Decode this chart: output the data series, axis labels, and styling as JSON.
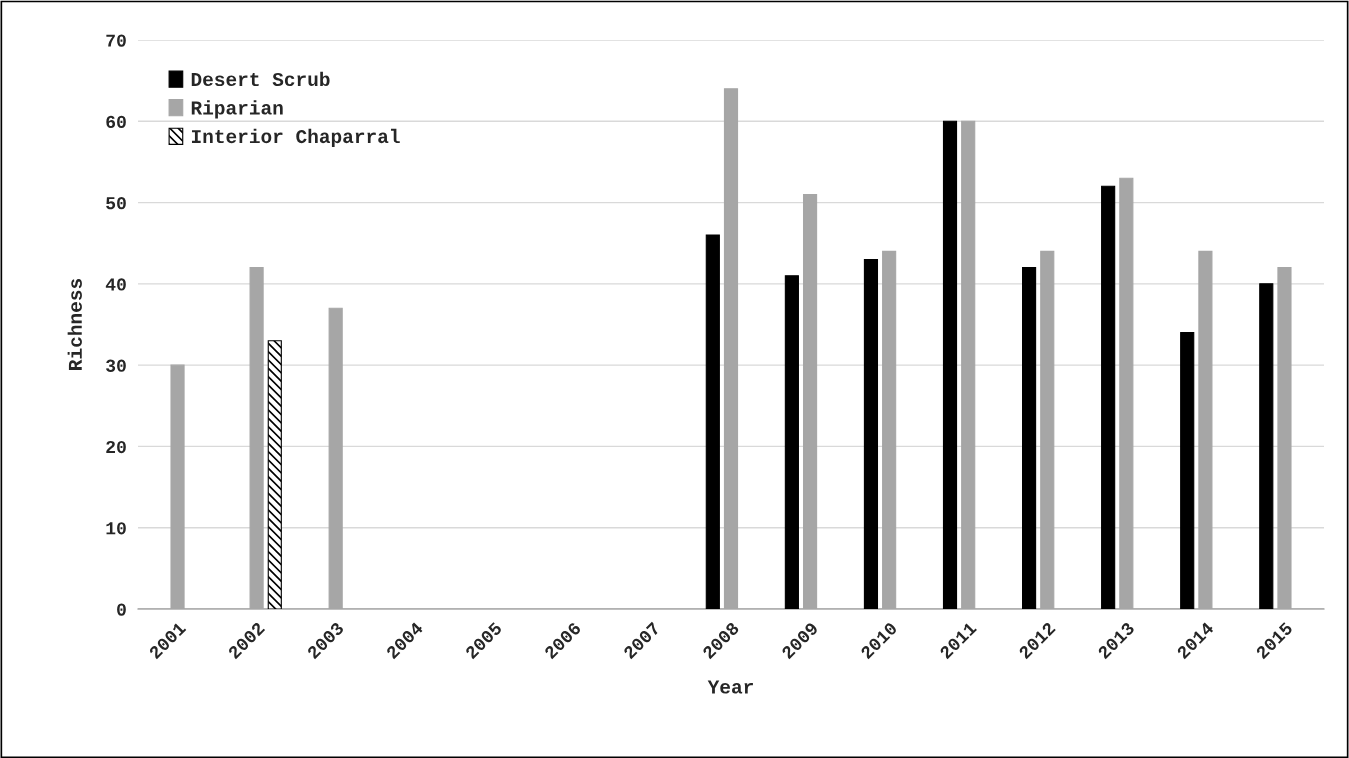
{
  "chart_data": {
    "type": "bar",
    "xlabel": "Year",
    "ylabel": "Richness",
    "categories": [
      "2001",
      "2002",
      "2003",
      "2004",
      "2005",
      "2006",
      "2007",
      "2008",
      "2009",
      "2010",
      "2011",
      "2012",
      "2013",
      "2014",
      "2015"
    ],
    "series": [
      {
        "name": "Desert Scrub",
        "color": "#000000",
        "values": [
          null,
          null,
          null,
          null,
          null,
          null,
          null,
          46,
          41,
          43,
          60,
          42,
          52,
          34,
          40
        ]
      },
      {
        "name": "Riparian",
        "color": "#a6a6a6",
        "values": [
          30,
          42,
          37,
          null,
          null,
          null,
          null,
          64,
          51,
          44,
          60,
          44,
          53,
          44,
          42
        ]
      },
      {
        "name": "Interior Chaparral",
        "color": "#000000",
        "values": [
          null,
          33,
          null,
          null,
          null,
          null,
          null,
          null,
          null,
          null,
          null,
          null,
          null,
          null,
          null
        ]
      }
    ],
    "ylim": [
      0,
      70
    ],
    "yticks": [
      0,
      10,
      20,
      30,
      40,
      50,
      60,
      70
    ],
    "grid": "y",
    "legend": "top left"
  }
}
